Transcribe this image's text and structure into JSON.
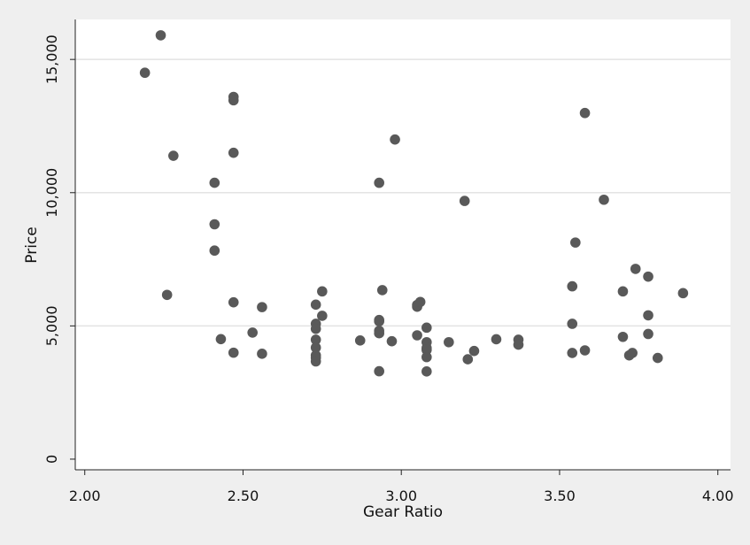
{
  "chart_data": {
    "type": "scatter",
    "title": "",
    "xlabel": "Gear Ratio",
    "ylabel": "Price",
    "xlim": [
      1.97,
      4.04
    ],
    "ylim": [
      -400,
      16500
    ],
    "xticks": [
      2.0,
      2.5,
      3.0,
      3.5,
      4.0
    ],
    "xtick_labels": [
      "2.00",
      "2.50",
      "3.00",
      "3.50",
      "4.00"
    ],
    "yticks": [
      0,
      5000,
      10000,
      15000
    ],
    "ytick_labels": [
      "0",
      "5,000",
      "10,000",
      "15,000"
    ],
    "grid": "horizontal",
    "marker_color": "#595959",
    "points": [
      [
        2.19,
        14500
      ],
      [
        2.24,
        15906
      ],
      [
        2.26,
        6165
      ],
      [
        2.28,
        11385
      ],
      [
        2.41,
        10372
      ],
      [
        2.41,
        8814
      ],
      [
        2.41,
        7827
      ],
      [
        2.43,
        4504
      ],
      [
        2.47,
        13594
      ],
      [
        2.47,
        13466
      ],
      [
        2.47,
        11497
      ],
      [
        2.47,
        5886
      ],
      [
        2.47,
        3995
      ],
      [
        2.53,
        4749
      ],
      [
        2.56,
        5705
      ],
      [
        2.56,
        3955
      ],
      [
        2.73,
        5798
      ],
      [
        2.73,
        5079
      ],
      [
        2.73,
        4890
      ],
      [
        2.73,
        4482
      ],
      [
        2.73,
        4187
      ],
      [
        2.73,
        3895
      ],
      [
        2.73,
        3799
      ],
      [
        2.73,
        3667
      ],
      [
        2.75,
        6295
      ],
      [
        2.75,
        5379
      ],
      [
        2.87,
        4453
      ],
      [
        2.93,
        10371
      ],
      [
        2.93,
        5222
      ],
      [
        2.93,
        5172
      ],
      [
        2.93,
        4816
      ],
      [
        2.93,
        4723
      ],
      [
        2.93,
        3299
      ],
      [
        2.94,
        6342
      ],
      [
        2.97,
        4425
      ],
      [
        2.98,
        11995
      ],
      [
        3.05,
        5788
      ],
      [
        3.05,
        5719
      ],
      [
        3.05,
        4647
      ],
      [
        3.06,
        5899
      ],
      [
        3.08,
        4934
      ],
      [
        3.08,
        4389
      ],
      [
        3.08,
        4172
      ],
      [
        3.08,
        4099
      ],
      [
        3.08,
        3829
      ],
      [
        3.08,
        3291
      ],
      [
        3.15,
        4389
      ],
      [
        3.2,
        9690
      ],
      [
        3.21,
        3748
      ],
      [
        3.23,
        4060
      ],
      [
        3.3,
        4499
      ],
      [
        3.37,
        4482
      ],
      [
        3.37,
        4296
      ],
      [
        3.54,
        6486
      ],
      [
        3.54,
        5079
      ],
      [
        3.54,
        3984
      ],
      [
        3.55,
        8129
      ],
      [
        3.58,
        12990
      ],
      [
        3.58,
        4082
      ],
      [
        3.64,
        9735
      ],
      [
        3.7,
        6295
      ],
      [
        3.7,
        4589
      ],
      [
        3.72,
        3895
      ],
      [
        3.73,
        3984
      ],
      [
        3.74,
        7140
      ],
      [
        3.78,
        6850
      ],
      [
        3.78,
        5397
      ],
      [
        3.78,
        4697
      ],
      [
        3.81,
        3798
      ],
      [
        3.89,
        6229
      ]
    ]
  }
}
